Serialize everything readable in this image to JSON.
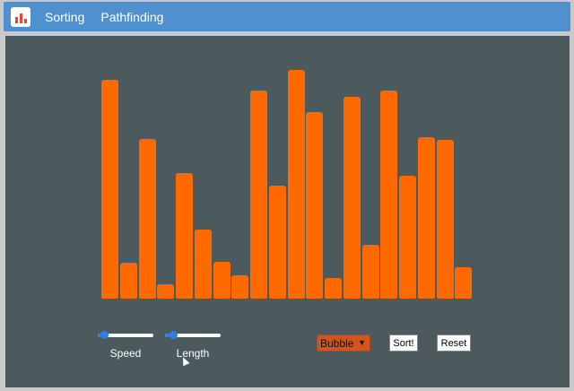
{
  "navbar": {
    "logo": "bar-chart-logo-icon",
    "links": [
      "Sorting",
      "Pathfinding"
    ]
  },
  "array": {
    "values": [
      244,
      40,
      178,
      16,
      140,
      77,
      41,
      26,
      232,
      126,
      255,
      208,
      23,
      225,
      60,
      232,
      137,
      180,
      177,
      35
    ],
    "max": 255,
    "bar_color": "#ff6a00"
  },
  "controls": {
    "speed": {
      "label": "Speed",
      "value": 0.05
    },
    "length": {
      "label": "Length",
      "value": 0.1
    },
    "algorithm": {
      "selected": "Bubble"
    },
    "sort_label": "Sort!",
    "reset_label": "Reset"
  }
}
